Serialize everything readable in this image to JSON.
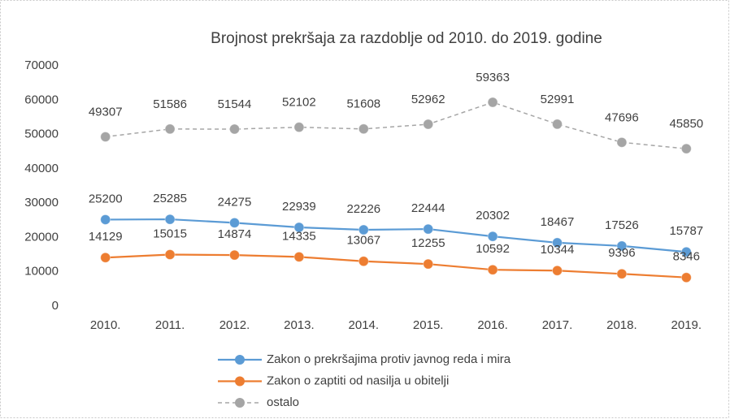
{
  "chart_data": {
    "type": "line",
    "title": "Brojnost prekršaja za razdoblje od 2010. do 2019. godine",
    "categories": [
      "2010.",
      "2011.",
      "2012.",
      "2013.",
      "2014.",
      "2015.",
      "2016.",
      "2017.",
      "2018.",
      "2019."
    ],
    "series": [
      {
        "name": "Zakon o prekršajima protiv javnog reda i mira",
        "color": "#5b9bd5",
        "dashed": false,
        "values": [
          25200,
          25285,
          24275,
          22939,
          22226,
          22444,
          20302,
          18467,
          17526,
          15787
        ]
      },
      {
        "name": "Zakon o zaptiti od nasilja u obitelji",
        "color": "#ed7d31",
        "dashed": false,
        "values": [
          14129,
          15015,
          14874,
          14335,
          13067,
          12255,
          10592,
          10344,
          9396,
          8346
        ]
      },
      {
        "name": "ostalo",
        "color": "#a5a5a5",
        "dashed": true,
        "values": [
          49307,
          51586,
          51544,
          52102,
          51608,
          52962,
          59363,
          52991,
          47696,
          45850
        ]
      }
    ],
    "ylim": [
      0,
      70000
    ],
    "yticks": [
      0,
      10000,
      20000,
      30000,
      40000,
      50000,
      60000,
      70000
    ],
    "grid": false,
    "legend": "bottom"
  }
}
